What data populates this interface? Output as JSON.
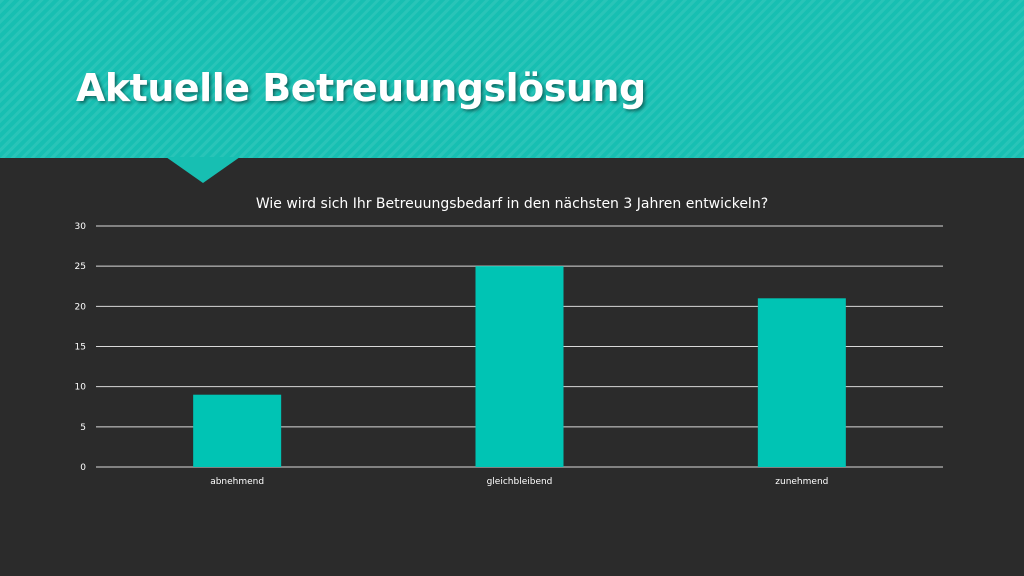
{
  "slide": {
    "title": "Aktuelle Betreuungslösung"
  },
  "colors": {
    "header": "#17bfb2",
    "background": "#2b2b2b",
    "bar": "#00c4b4",
    "grid": "#d9d9d9"
  },
  "chart_data": {
    "type": "bar",
    "title": "Wie wird sich Ihr Betreuungsbedarf in den nächsten 3 Jahren entwickeln?",
    "categories": [
      "abnehmend",
      "gleichbleibend",
      "zunehmend"
    ],
    "values": [
      9,
      25,
      21
    ],
    "ylim": [
      0,
      30
    ],
    "yticks": [
      0,
      5,
      10,
      15,
      20,
      25,
      30
    ],
    "xlabel": "",
    "ylabel": "",
    "grid": true,
    "legend": "none"
  }
}
